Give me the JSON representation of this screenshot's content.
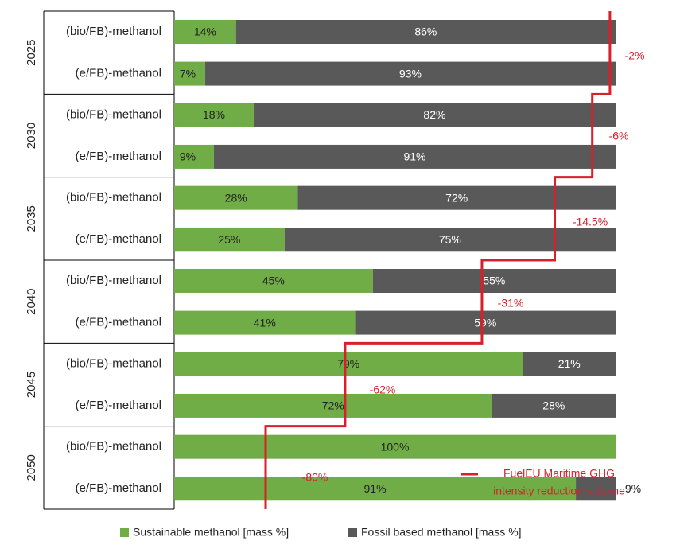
{
  "chart_data": {
    "type": "bar",
    "orientation": "horizontal",
    "stacked": true,
    "xlim": [
      0,
      100
    ],
    "groups": [
      {
        "year": "2025",
        "reduction": "-2%",
        "rows": [
          {
            "label": "(bio/FB)-methanol",
            "sustainable": 14,
            "fossil": 86,
            "sustainable_text": "14%",
            "fossil_text": "86%"
          },
          {
            "label": "(e/FB)-methanol",
            "sustainable": 7,
            "fossil": 93,
            "sustainable_text": "7%",
            "fossil_text": "93%"
          }
        ]
      },
      {
        "year": "2030",
        "reduction": "-6%",
        "rows": [
          {
            "label": "(bio/FB)-methanol",
            "sustainable": 18,
            "fossil": 82,
            "sustainable_text": "18%",
            "fossil_text": "82%"
          },
          {
            "label": "(e/FB)-methanol",
            "sustainable": 9,
            "fossil": 91,
            "sustainable_text": "9%",
            "fossil_text": "91%"
          }
        ]
      },
      {
        "year": "2035",
        "reduction": "-14.5%",
        "rows": [
          {
            "label": "(bio/FB)-methanol",
            "sustainable": 28,
            "fossil": 72,
            "sustainable_text": "28%",
            "fossil_text": "72%"
          },
          {
            "label": "(e/FB)-methanol",
            "sustainable": 25,
            "fossil": 75,
            "sustainable_text": "25%",
            "fossil_text": "75%"
          }
        ]
      },
      {
        "year": "2040",
        "reduction": "-31%",
        "rows": [
          {
            "label": "(bio/FB)-methanol",
            "sustainable": 45,
            "fossil": 55,
            "sustainable_text": "45%",
            "fossil_text": "55%"
          },
          {
            "label": "(e/FB)-methanol",
            "sustainable": 41,
            "fossil": 59,
            "sustainable_text": "41%",
            "fossil_text": "59%"
          }
        ]
      },
      {
        "year": "2045",
        "reduction": "-62%",
        "rows": [
          {
            "label": "(bio/FB)-methanol",
            "sustainable": 79,
            "fossil": 21,
            "sustainable_text": "79%",
            "fossil_text": "21%"
          },
          {
            "label": "(e/FB)-methanol",
            "sustainable": 72,
            "fossil": 28,
            "sustainable_text": "72%",
            "fossil_text": "28%"
          }
        ]
      },
      {
        "year": "2050",
        "reduction": "-80%",
        "rows": [
          {
            "label": "(bio/FB)-methanol",
            "sustainable": 100,
            "fossil": 0,
            "sustainable_text": "100%",
            "fossil_text": ""
          },
          {
            "label": "(e/FB)-methanol",
            "sustainable": 91,
            "fossil": 9,
            "sustainable_text": "91%",
            "fossil_text": "9%"
          }
        ]
      }
    ],
    "series": [
      {
        "name": "Sustainable methanol [mass %]",
        "key": "sustainable",
        "color": "#70ad47",
        "label_color": "#222222"
      },
      {
        "name": "Fossil based methanol [mass %]",
        "key": "fossil",
        "color": "#595959",
        "label_color": "#ffffff"
      }
    ],
    "reduction_line": {
      "name_line1": "FuelEU Maritime GHG",
      "name_line2": "intensity reduction scheme",
      "color": "#d9202a",
      "limits": [
        98,
        94,
        85.5,
        69,
        38,
        20
      ]
    },
    "legend_position": "bottom"
  }
}
